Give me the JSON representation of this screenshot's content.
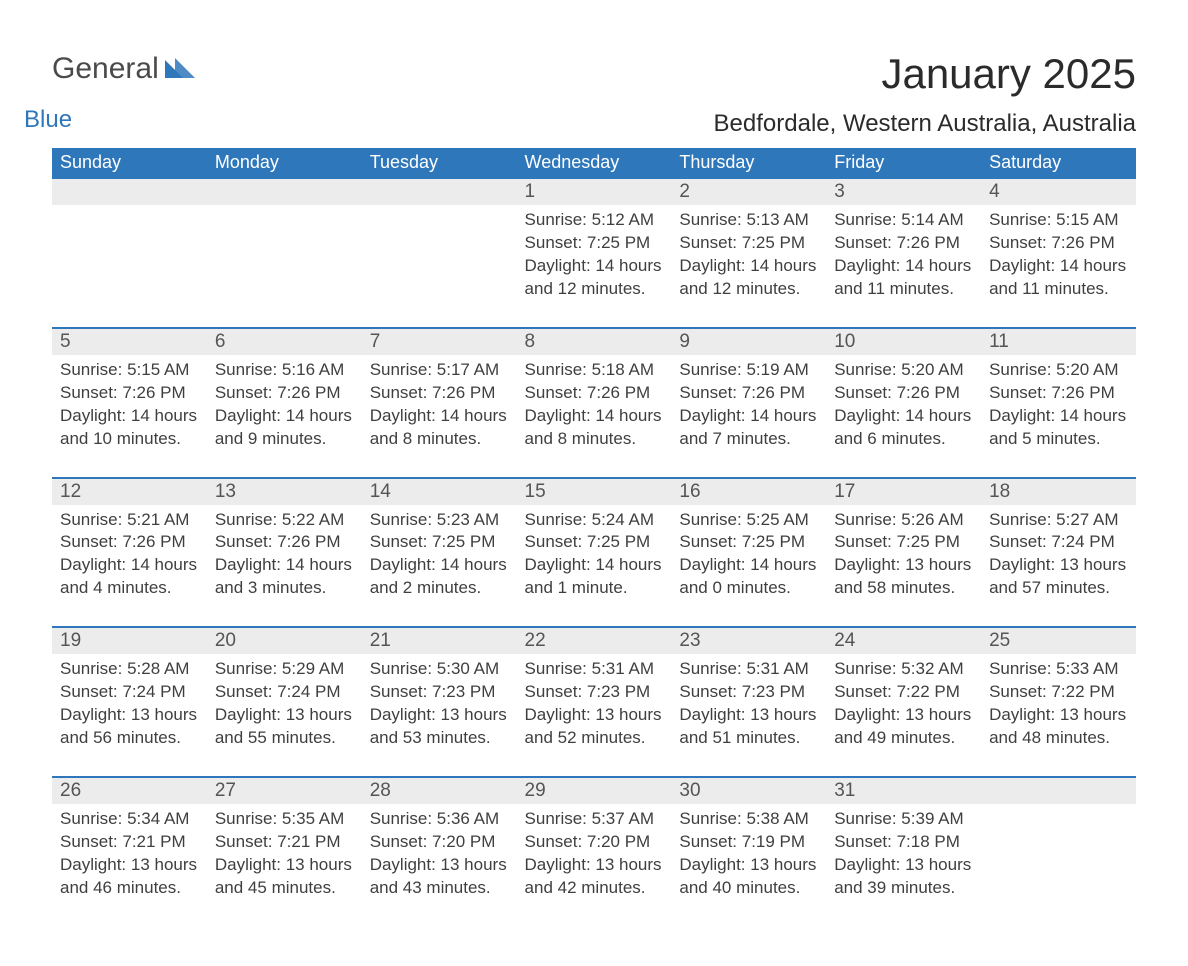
{
  "logo": {
    "word1": "General",
    "word2": "Blue",
    "tri_color": "#2f77bb"
  },
  "title": "January 2025",
  "location": "Bedfordale, Western Australia, Australia",
  "colors": {
    "header_bg": "#2f77bb",
    "header_text": "#ffffff",
    "daynum_bg": "#ececec",
    "border_top": "#2f77bb",
    "body_text": "#3f3f3f"
  },
  "day_headers": [
    "Sunday",
    "Monday",
    "Tuesday",
    "Wednesday",
    "Thursday",
    "Friday",
    "Saturday"
  ],
  "weeks": [
    [
      null,
      null,
      null,
      {
        "n": "1",
        "sr": "Sunrise: 5:12 AM",
        "ss": "Sunset: 7:25 PM",
        "dl": "Daylight: 14 hours and 12 minutes."
      },
      {
        "n": "2",
        "sr": "Sunrise: 5:13 AM",
        "ss": "Sunset: 7:25 PM",
        "dl": "Daylight: 14 hours and 12 minutes."
      },
      {
        "n": "3",
        "sr": "Sunrise: 5:14 AM",
        "ss": "Sunset: 7:26 PM",
        "dl": "Daylight: 14 hours and 11 minutes."
      },
      {
        "n": "4",
        "sr": "Sunrise: 5:15 AM",
        "ss": "Sunset: 7:26 PM",
        "dl": "Daylight: 14 hours and 11 minutes."
      }
    ],
    [
      {
        "n": "5",
        "sr": "Sunrise: 5:15 AM",
        "ss": "Sunset: 7:26 PM",
        "dl": "Daylight: 14 hours and 10 minutes."
      },
      {
        "n": "6",
        "sr": "Sunrise: 5:16 AM",
        "ss": "Sunset: 7:26 PM",
        "dl": "Daylight: 14 hours and 9 minutes."
      },
      {
        "n": "7",
        "sr": "Sunrise: 5:17 AM",
        "ss": "Sunset: 7:26 PM",
        "dl": "Daylight: 14 hours and 8 minutes."
      },
      {
        "n": "8",
        "sr": "Sunrise: 5:18 AM",
        "ss": "Sunset: 7:26 PM",
        "dl": "Daylight: 14 hours and 8 minutes."
      },
      {
        "n": "9",
        "sr": "Sunrise: 5:19 AM",
        "ss": "Sunset: 7:26 PM",
        "dl": "Daylight: 14 hours and 7 minutes."
      },
      {
        "n": "10",
        "sr": "Sunrise: 5:20 AM",
        "ss": "Sunset: 7:26 PM",
        "dl": "Daylight: 14 hours and 6 minutes."
      },
      {
        "n": "11",
        "sr": "Sunrise: 5:20 AM",
        "ss": "Sunset: 7:26 PM",
        "dl": "Daylight: 14 hours and 5 minutes."
      }
    ],
    [
      {
        "n": "12",
        "sr": "Sunrise: 5:21 AM",
        "ss": "Sunset: 7:26 PM",
        "dl": "Daylight: 14 hours and 4 minutes."
      },
      {
        "n": "13",
        "sr": "Sunrise: 5:22 AM",
        "ss": "Sunset: 7:26 PM",
        "dl": "Daylight: 14 hours and 3 minutes."
      },
      {
        "n": "14",
        "sr": "Sunrise: 5:23 AM",
        "ss": "Sunset: 7:25 PM",
        "dl": "Daylight: 14 hours and 2 minutes."
      },
      {
        "n": "15",
        "sr": "Sunrise: 5:24 AM",
        "ss": "Sunset: 7:25 PM",
        "dl": "Daylight: 14 hours and 1 minute."
      },
      {
        "n": "16",
        "sr": "Sunrise: 5:25 AM",
        "ss": "Sunset: 7:25 PM",
        "dl": "Daylight: 14 hours and 0 minutes."
      },
      {
        "n": "17",
        "sr": "Sunrise: 5:26 AM",
        "ss": "Sunset: 7:25 PM",
        "dl": "Daylight: 13 hours and 58 minutes."
      },
      {
        "n": "18",
        "sr": "Sunrise: 5:27 AM",
        "ss": "Sunset: 7:24 PM",
        "dl": "Daylight: 13 hours and 57 minutes."
      }
    ],
    [
      {
        "n": "19",
        "sr": "Sunrise: 5:28 AM",
        "ss": "Sunset: 7:24 PM",
        "dl": "Daylight: 13 hours and 56 minutes."
      },
      {
        "n": "20",
        "sr": "Sunrise: 5:29 AM",
        "ss": "Sunset: 7:24 PM",
        "dl": "Daylight: 13 hours and 55 minutes."
      },
      {
        "n": "21",
        "sr": "Sunrise: 5:30 AM",
        "ss": "Sunset: 7:23 PM",
        "dl": "Daylight: 13 hours and 53 minutes."
      },
      {
        "n": "22",
        "sr": "Sunrise: 5:31 AM",
        "ss": "Sunset: 7:23 PM",
        "dl": "Daylight: 13 hours and 52 minutes."
      },
      {
        "n": "23",
        "sr": "Sunrise: 5:31 AM",
        "ss": "Sunset: 7:23 PM",
        "dl": "Daylight: 13 hours and 51 minutes."
      },
      {
        "n": "24",
        "sr": "Sunrise: 5:32 AM",
        "ss": "Sunset: 7:22 PM",
        "dl": "Daylight: 13 hours and 49 minutes."
      },
      {
        "n": "25",
        "sr": "Sunrise: 5:33 AM",
        "ss": "Sunset: 7:22 PM",
        "dl": "Daylight: 13 hours and 48 minutes."
      }
    ],
    [
      {
        "n": "26",
        "sr": "Sunrise: 5:34 AM",
        "ss": "Sunset: 7:21 PM",
        "dl": "Daylight: 13 hours and 46 minutes."
      },
      {
        "n": "27",
        "sr": "Sunrise: 5:35 AM",
        "ss": "Sunset: 7:21 PM",
        "dl": "Daylight: 13 hours and 45 minutes."
      },
      {
        "n": "28",
        "sr": "Sunrise: 5:36 AM",
        "ss": "Sunset: 7:20 PM",
        "dl": "Daylight: 13 hours and 43 minutes."
      },
      {
        "n": "29",
        "sr": "Sunrise: 5:37 AM",
        "ss": "Sunset: 7:20 PM",
        "dl": "Daylight: 13 hours and 42 minutes."
      },
      {
        "n": "30",
        "sr": "Sunrise: 5:38 AM",
        "ss": "Sunset: 7:19 PM",
        "dl": "Daylight: 13 hours and 40 minutes."
      },
      {
        "n": "31",
        "sr": "Sunrise: 5:39 AM",
        "ss": "Sunset: 7:18 PM",
        "dl": "Daylight: 13 hours and 39 minutes."
      },
      null
    ]
  ]
}
